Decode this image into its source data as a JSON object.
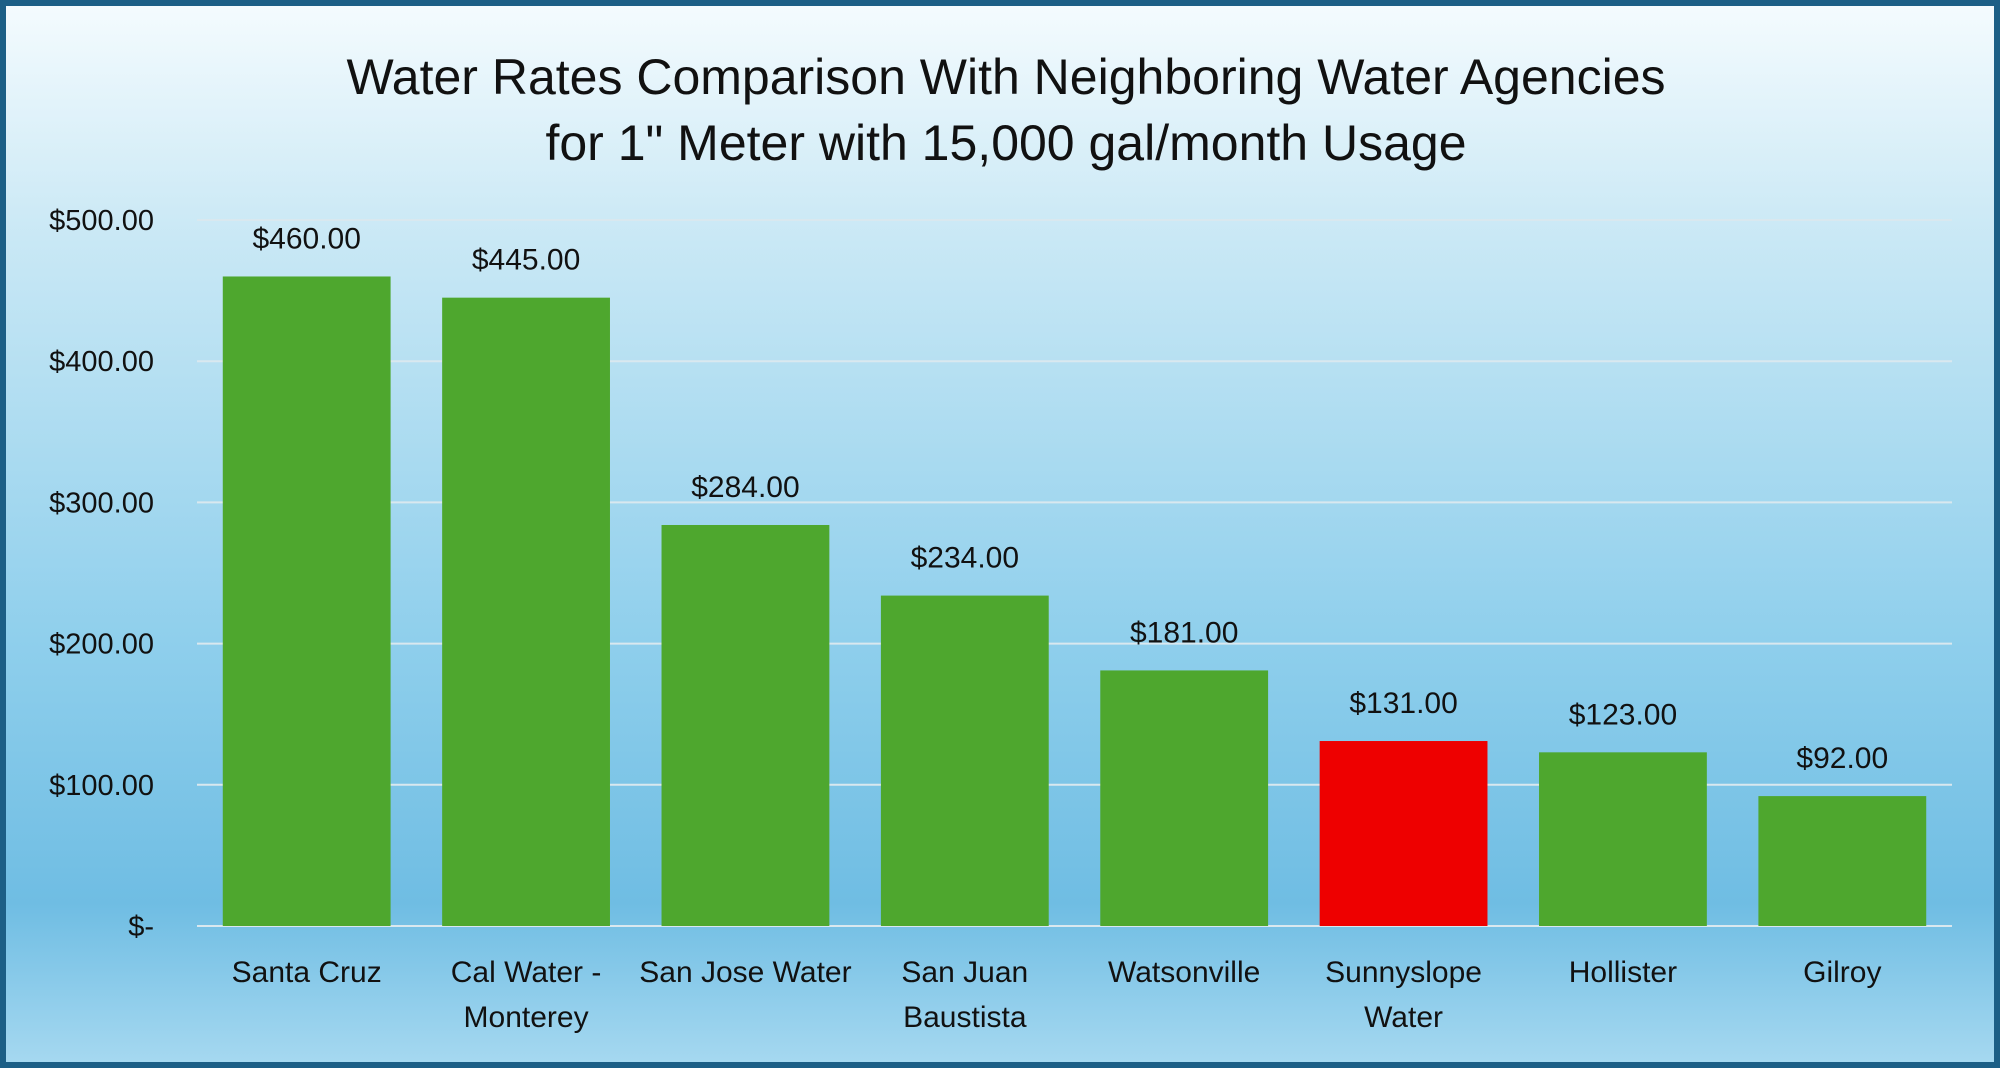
{
  "chart_data": {
    "type": "bar",
    "title": "Water Rates Comparison With Neighboring Water Agencies",
    "subtitle": "for 1\" Meter with 15,000 gal/month Usage",
    "categories": [
      [
        "Santa Cruz"
      ],
      [
        "Cal Water -",
        "Monterey"
      ],
      [
        "San Jose Water"
      ],
      [
        "San Juan",
        "Baustista"
      ],
      [
        "Watsonville"
      ],
      [
        "Sunnyslope",
        "Water"
      ],
      [
        "Hollister"
      ],
      [
        "Gilroy"
      ]
    ],
    "values": [
      460,
      445,
      284,
      234,
      181,
      131,
      123,
      92
    ],
    "data_labels": [
      "$460.00",
      "$445.00",
      "$284.00",
      "$234.00",
      "$181.00",
      "$131.00",
      "$123.00",
      "$92.00"
    ],
    "bar_colors": [
      "#4ea72e",
      "#4ea72e",
      "#4ea72e",
      "#4ea72e",
      "#4ea72e",
      "#ee0000",
      "#4ea72e",
      "#4ea72e"
    ],
    "ylim": [
      0,
      500
    ],
    "yticks": [
      0,
      100,
      200,
      300,
      400,
      500
    ],
    "ytick_labels": [
      "$-",
      "$100.00",
      "$200.00",
      "$300.00",
      "$400.00",
      "$500.00"
    ],
    "grid": true,
    "legend": "none",
    "colors": {
      "bar": "#4ea72e",
      "highlight": "#ee0000",
      "grid": "#d9e8ef",
      "frame": "#1c5f86"
    }
  }
}
